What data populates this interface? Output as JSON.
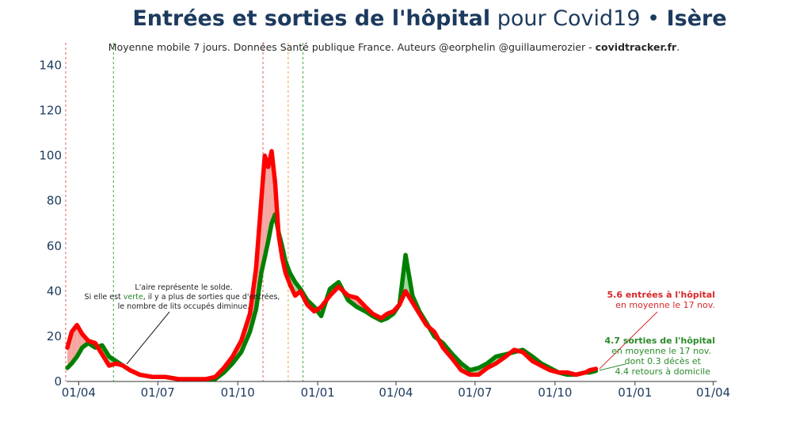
{
  "header": {
    "title_bold": "Entrées et sorties de l'hôpital",
    "title_light": " pour Covid19 • ",
    "title_region": "Isère",
    "subtitle_main": "Moyenne mobile 7 jours. Données Santé publique France. Auteurs @eorphelin @guillaumerozier - ",
    "subtitle_brand": "covidtracker.fr",
    "subtitle_end": "."
  },
  "annotations": {
    "solde_line1": "L'aire représente le solde.",
    "solde_line2a": "Si elle est ",
    "solde_line2b": "verte",
    "solde_line2c": ", il y a plus de sorties que d'entrées,",
    "solde_line3": "le nombre de lits occupés diminue.",
    "entrees_line1": "5.6 entrées à l'hôpital",
    "entrees_line2": "en moyenne le 17 nov.",
    "sorties_line1": "4.7 sorties de l'hôpital",
    "sorties_line2": "en moyenne le 17 nov.",
    "sorties_line3": "dont 0.3 décès et",
    "sorties_line4": "4.4 retours à domicile"
  },
  "colors": {
    "entrees": "#ff0000",
    "sorties": "#008000",
    "fill_positive": "#f4a6a0",
    "fill_negative": "#9ad89a",
    "axis_text": "#1c3a5e"
  },
  "chart_data": {
    "type": "line",
    "xlabel": "",
    "ylabel": "",
    "ylim": [
      0,
      150
    ],
    "yticks": [
      0,
      20,
      40,
      60,
      80,
      100,
      120,
      140
    ],
    "xlim": [
      "2020-03-18",
      "2022-04-05"
    ],
    "xticks": [
      {
        "date": "2020-04-01",
        "label": "01/04"
      },
      {
        "date": "2020-07-01",
        "label": "01/07"
      },
      {
        "date": "2020-10-01",
        "label": "01/10"
      },
      {
        "date": "2021-01-01",
        "label": "01/01"
      },
      {
        "date": "2021-04-01",
        "label": "01/04"
      },
      {
        "date": "2021-07-01",
        "label": "01/07"
      },
      {
        "date": "2021-10-01",
        "label": "01/10"
      },
      {
        "date": "2022-01-01",
        "label": "01/01"
      },
      {
        "date": "2022-04-01",
        "label": "01/04"
      }
    ],
    "vlines": [
      {
        "date": "2020-03-17",
        "color": "#e06060"
      },
      {
        "date": "2020-05-11",
        "color": "#3aaa3a"
      },
      {
        "date": "2020-10-30",
        "color": "#e06060"
      },
      {
        "date": "2020-11-28",
        "color": "#f0a040"
      },
      {
        "date": "2020-12-15",
        "color": "#3aaa3a"
      }
    ],
    "series": [
      {
        "name": "Entrées",
        "x": [
          "2020-03-19",
          "2020-03-24",
          "2020-03-30",
          "2020-04-05",
          "2020-04-12",
          "2020-04-20",
          "2020-04-28",
          "2020-05-06",
          "2020-05-14",
          "2020-05-22",
          "2020-05-30",
          "2020-06-10",
          "2020-06-25",
          "2020-07-10",
          "2020-07-25",
          "2020-08-10",
          "2020-08-25",
          "2020-09-05",
          "2020-09-15",
          "2020-09-25",
          "2020-10-05",
          "2020-10-15",
          "2020-10-22",
          "2020-10-28",
          "2020-11-01",
          "2020-11-05",
          "2020-11-09",
          "2020-11-13",
          "2020-11-17",
          "2020-11-21",
          "2020-11-25",
          "2020-11-30",
          "2020-12-06",
          "2020-12-12",
          "2020-12-20",
          "2020-12-28",
          "2021-01-05",
          "2021-01-15",
          "2021-01-25",
          "2021-02-05",
          "2021-02-15",
          "2021-02-25",
          "2021-03-05",
          "2021-03-15",
          "2021-03-22",
          "2021-03-29",
          "2021-04-05",
          "2021-04-12",
          "2021-04-20",
          "2021-04-28",
          "2021-05-06",
          "2021-05-15",
          "2021-05-25",
          "2021-06-05",
          "2021-06-15",
          "2021-06-25",
          "2021-07-05",
          "2021-07-15",
          "2021-07-25",
          "2021-08-05",
          "2021-08-15",
          "2021-08-25",
          "2021-09-05",
          "2021-09-15",
          "2021-09-25",
          "2021-10-05",
          "2021-10-15",
          "2021-10-25",
          "2021-11-05",
          "2021-11-10",
          "2021-11-17"
        ],
        "values": [
          15,
          22,
          25,
          21,
          18,
          17,
          12,
          7,
          8,
          7,
          5,
          3,
          2,
          2,
          1,
          1,
          1,
          2,
          6,
          11,
          18,
          30,
          50,
          80,
          100,
          95,
          102,
          88,
          65,
          55,
          48,
          43,
          38,
          40,
          34,
          31,
          33,
          38,
          42,
          38,
          37,
          33,
          30,
          28,
          30,
          31,
          34,
          40,
          35,
          30,
          25,
          22,
          15,
          10,
          5,
          3,
          3,
          6,
          8,
          11,
          14,
          13,
          9,
          7,
          5,
          4,
          4,
          3,
          4,
          5,
          5.6
        ]
      },
      {
        "name": "Sorties",
        "x": [
          "2020-03-19",
          "2020-03-24",
          "2020-03-30",
          "2020-04-05",
          "2020-04-12",
          "2020-04-20",
          "2020-04-28",
          "2020-05-06",
          "2020-05-14",
          "2020-05-22",
          "2020-05-30",
          "2020-06-10",
          "2020-06-25",
          "2020-07-10",
          "2020-07-25",
          "2020-08-10",
          "2020-08-25",
          "2020-09-05",
          "2020-09-15",
          "2020-09-25",
          "2020-10-05",
          "2020-10-15",
          "2020-10-22",
          "2020-10-28",
          "2020-11-01",
          "2020-11-05",
          "2020-11-09",
          "2020-11-13",
          "2020-11-17",
          "2020-11-21",
          "2020-11-25",
          "2020-11-30",
          "2020-12-06",
          "2020-12-12",
          "2020-12-20",
          "2020-12-28",
          "2021-01-05",
          "2021-01-15",
          "2021-01-25",
          "2021-02-05",
          "2021-02-15",
          "2021-02-25",
          "2021-03-05",
          "2021-03-15",
          "2021-03-22",
          "2021-03-29",
          "2021-04-05",
          "2021-04-12",
          "2021-04-20",
          "2021-04-28",
          "2021-05-06",
          "2021-05-15",
          "2021-05-25",
          "2021-06-05",
          "2021-06-15",
          "2021-06-25",
          "2021-07-05",
          "2021-07-15",
          "2021-07-25",
          "2021-08-05",
          "2021-08-15",
          "2021-08-25",
          "2021-09-05",
          "2021-09-15",
          "2021-09-25",
          "2021-10-05",
          "2021-10-15",
          "2021-10-25",
          "2021-11-05",
          "2021-11-10",
          "2021-11-17"
        ],
        "values": [
          6,
          8,
          11,
          15,
          17,
          15,
          16,
          11,
          9,
          7,
          5,
          3,
          2,
          2,
          1,
          1,
          1,
          1,
          4,
          8,
          13,
          22,
          32,
          48,
          55,
          62,
          70,
          74,
          66,
          60,
          53,
          48,
          44,
          41,
          36,
          33,
          29,
          41,
          44,
          36,
          33,
          31,
          29,
          27,
          28,
          30,
          34,
          56,
          38,
          31,
          26,
          20,
          17,
          12,
          8,
          5,
          6,
          8,
          11,
          12,
          13,
          14,
          11,
          8,
          6,
          4,
          3,
          3,
          4,
          4,
          4.7
        ]
      }
    ]
  }
}
